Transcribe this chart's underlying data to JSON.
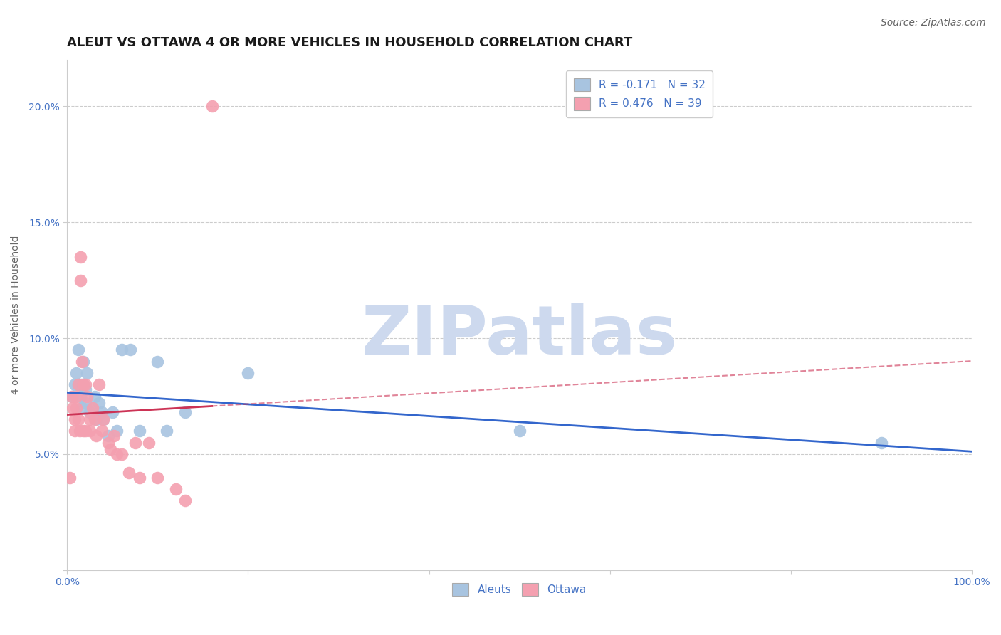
{
  "title": "ALEUT VS OTTAWA 4 OR MORE VEHICLES IN HOUSEHOLD CORRELATION CHART",
  "source": "Source: ZipAtlas.com",
  "ylabel": "4 or more Vehicles in Household",
  "xlim": [
    0.0,
    1.0
  ],
  "ylim": [
    0.0,
    0.22
  ],
  "aleuts_R": -0.171,
  "aleuts_N": 32,
  "ottawa_R": 0.476,
  "ottawa_N": 39,
  "aleuts_color": "#a8c4e0",
  "ottawa_color": "#f4a0b0",
  "trendline_aleuts_color": "#3366cc",
  "trendline_ottawa_color": "#cc3355",
  "background_color": "#ffffff",
  "grid_color": "#cccccc",
  "watermark_color": "#cdd9ee",
  "aleuts_x": [
    0.005,
    0.008,
    0.01,
    0.012,
    0.012,
    0.015,
    0.015,
    0.016,
    0.018,
    0.018,
    0.02,
    0.02,
    0.022,
    0.025,
    0.028,
    0.03,
    0.032,
    0.035,
    0.038,
    0.04,
    0.045,
    0.05,
    0.055,
    0.06,
    0.07,
    0.08,
    0.1,
    0.11,
    0.13,
    0.2,
    0.5,
    0.9
  ],
  "aleuts_y": [
    0.075,
    0.08,
    0.085,
    0.095,
    0.08,
    0.08,
    0.075,
    0.07,
    0.09,
    0.08,
    0.078,
    0.072,
    0.085,
    0.068,
    0.07,
    0.075,
    0.065,
    0.072,
    0.068,
    0.065,
    0.058,
    0.068,
    0.06,
    0.095,
    0.095,
    0.06,
    0.09,
    0.06,
    0.068,
    0.085,
    0.06,
    0.055
  ],
  "ottawa_x": [
    0.003,
    0.005,
    0.006,
    0.008,
    0.008,
    0.01,
    0.01,
    0.012,
    0.012,
    0.014,
    0.015,
    0.015,
    0.016,
    0.018,
    0.018,
    0.02,
    0.02,
    0.022,
    0.025,
    0.025,
    0.028,
    0.03,
    0.032,
    0.035,
    0.038,
    0.04,
    0.045,
    0.048,
    0.052,
    0.055,
    0.06,
    0.068,
    0.075,
    0.08,
    0.09,
    0.1,
    0.12,
    0.13,
    0.16
  ],
  "ottawa_y": [
    0.04,
    0.075,
    0.07,
    0.065,
    0.06,
    0.075,
    0.07,
    0.08,
    0.065,
    0.06,
    0.135,
    0.125,
    0.09,
    0.08,
    0.06,
    0.08,
    0.06,
    0.075,
    0.065,
    0.06,
    0.07,
    0.065,
    0.058,
    0.08,
    0.06,
    0.065,
    0.055,
    0.052,
    0.058,
    0.05,
    0.05,
    0.042,
    0.055,
    0.04,
    0.055,
    0.04,
    0.035,
    0.03,
    0.2
  ],
  "title_fontsize": 13,
  "axis_label_fontsize": 10,
  "tick_fontsize": 10,
  "legend_fontsize": 11,
  "source_fontsize": 10
}
